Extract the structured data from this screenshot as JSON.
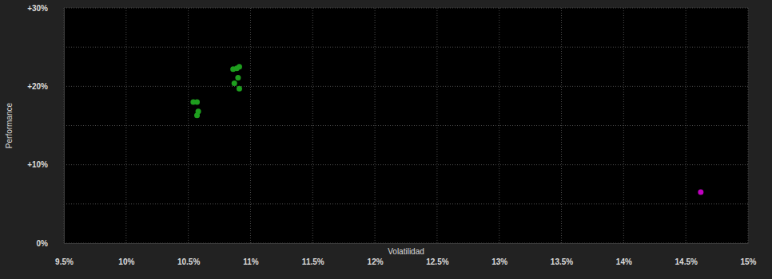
{
  "chart_data": {
    "type": "scatter",
    "x_label": "Volatilidad",
    "y_label": "Performance",
    "series": [
      {
        "color": "#1e9e1e",
        "x": [
          10.54,
          10.57,
          10.58,
          10.57,
          10.86,
          10.89,
          10.91,
          10.9,
          10.87,
          10.91
        ],
        "values": [
          18.0,
          18.0,
          16.8,
          16.3,
          22.2,
          22.3,
          22.5,
          21.1,
          20.4,
          19.7
        ]
      },
      {
        "color": "#c000c0",
        "x": [
          14.62
        ],
        "values": [
          6.5
        ]
      }
    ],
    "xlim": [
      9.5,
      15
    ],
    "xticks": [
      {
        "value": 9.5,
        "label": "9.5%"
      },
      {
        "value": 10,
        "label": "10%"
      },
      {
        "value": 10.5,
        "label": "10.5%"
      },
      {
        "value": 11,
        "label": "11%"
      },
      {
        "value": 11.5,
        "label": "11.5%"
      },
      {
        "value": 12,
        "label": "12%"
      },
      {
        "value": 12.5,
        "label": "12.5%"
      },
      {
        "value": 13,
        "label": "13%"
      },
      {
        "value": 13.5,
        "label": "13.5%"
      },
      {
        "value": 14,
        "label": "14%"
      },
      {
        "value": 14.5,
        "label": "14.5%"
      },
      {
        "value": 15,
        "label": "15%"
      }
    ],
    "ylim": [
      0,
      30
    ],
    "yticks": [
      {
        "value": 0,
        "label": "0%"
      },
      {
        "value": 5,
        "label": null
      },
      {
        "value": 10,
        "label": "+10%"
      },
      {
        "value": 15,
        "label": null
      },
      {
        "value": 20,
        "label": "+20%"
      },
      {
        "value": 25,
        "label": null
      },
      {
        "value": 30,
        "label": "+30%"
      }
    ],
    "grid": true
  }
}
